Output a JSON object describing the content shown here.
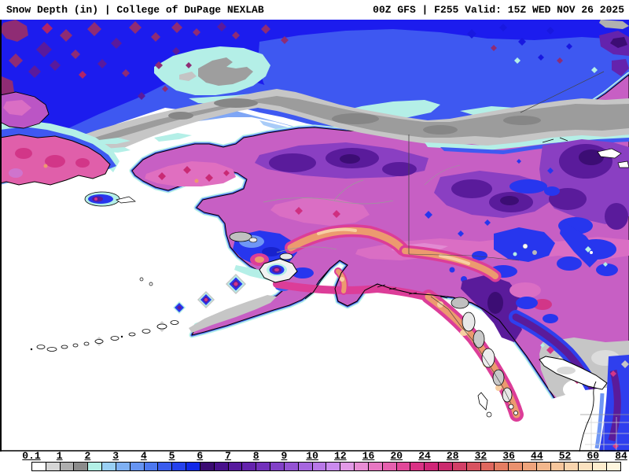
{
  "header": {
    "left": "Snow Depth (in) | College of DuPage NEXLAB",
    "right": "00Z GFS | F255 Valid: 15Z WED NOV 26 2025"
  },
  "legend": {
    "ticks": [
      "0.1",
      "1",
      "2",
      "3",
      "4",
      "5",
      "6",
      "7",
      "8",
      "9",
      "10",
      "12",
      "16",
      "20",
      "24",
      "28",
      "32",
      "36",
      "44",
      "52",
      "60",
      "84"
    ],
    "segment_colors": [
      "#ffffff",
      "#d6d6d6",
      "#aeaeae",
      "#8b8b8b",
      "#b3f0e6",
      "#99cff3",
      "#7fb0f3",
      "#6694f2",
      "#4d78f0",
      "#3a5cee",
      "#2642ec",
      "#1128e8",
      "#3b0b72",
      "#48108c",
      "#56199d",
      "#6423ad",
      "#7231bb",
      "#8241c7",
      "#9453d3",
      "#a666df",
      "#b878e7",
      "#ca8bee",
      "#e29ae6",
      "#e88dd4",
      "#e877c2",
      "#e560ae",
      "#e14899",
      "#da3285",
      "#d02577",
      "#cb2a6e",
      "#d24067",
      "#d85360",
      "#df685e",
      "#e57d62",
      "#ea916e",
      "#efa47c",
      "#f3b78c",
      "#f6c69c",
      "#f9d5ae",
      "#fbe2c0",
      "#fdeccd",
      "#fef6de"
    ]
  },
  "map": {
    "palette": {
      "no_snow_ocean": "#ffffff",
      "deep_blue": "#1c1cee",
      "pale_cyan": "#b4efe7",
      "arctic_gray": "#9c9c9c",
      "land_orchid": "#c75fc4",
      "pink": "#da6ec4",
      "magenta": "#dc3d98",
      "dark_purple": "#5a1b9b",
      "darkest_purple": "#3c0d74",
      "royal_blue": "#2736ee",
      "salmon": "#ec9a6f",
      "peach": "#f7cfa2"
    }
  }
}
